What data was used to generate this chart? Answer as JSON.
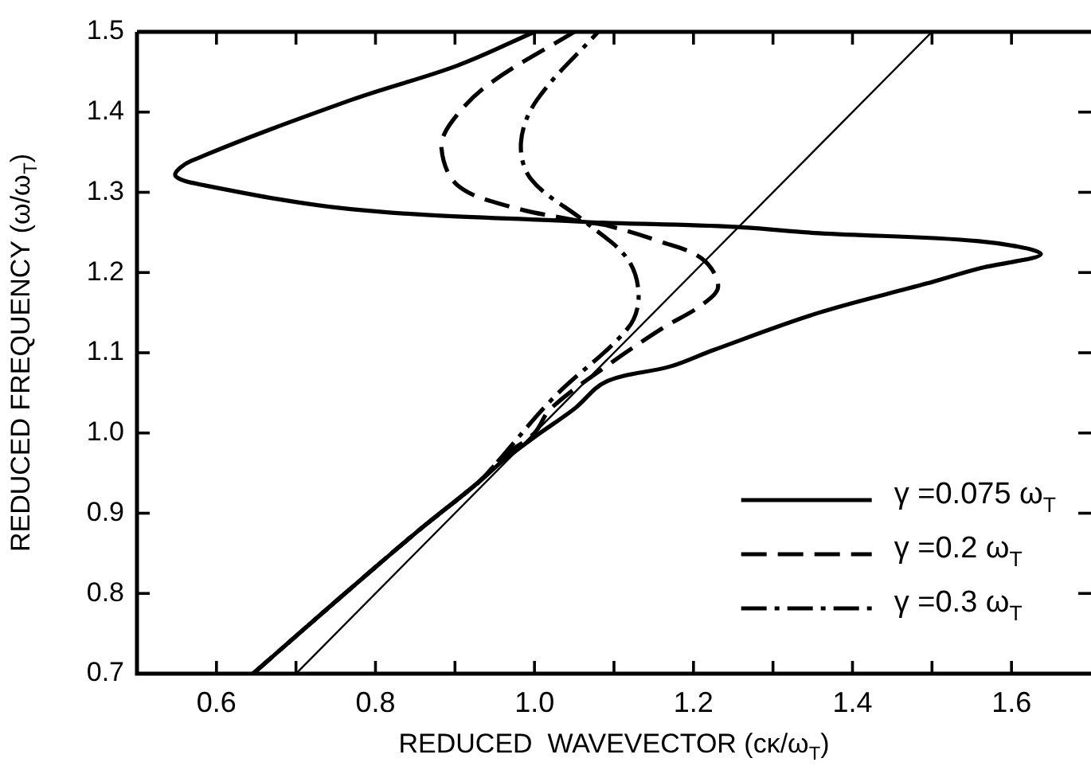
{
  "chart_data": {
    "type": "line",
    "xlabel": "REDUCED  WAVEVECTOR (cκ/ω$_{T}$)",
    "ylabel": "REDUCED FREQUENCY (ω/ω$_{T}$)",
    "xlim": [
      0.5,
      1.7
    ],
    "ylim": [
      0.7,
      1.5
    ],
    "xticks": [
      0.6,
      {
        "value": 0.7,
        "label": null
      },
      0.8,
      {
        "value": 0.9,
        "label": null
      },
      {
        "value": 1,
        "label": "1.0"
      },
      {
        "value": 1.1,
        "label": null
      },
      1.2,
      {
        "value": 1.3,
        "label": null
      },
      1.4,
      {
        "value": 1.5,
        "label": null
      },
      1.6
    ],
    "yticks": [
      0.7,
      0.8,
      0.9,
      {
        "value": 1,
        "label": "1.0"
      },
      1.1,
      1.2,
      1.3,
      1.4,
      1.5
    ],
    "grid": false,
    "legend": "bottom right",
    "marker": "none",
    "series": [
      {
        "name": "γ =0.075 ω$_{T}$",
        "color": "#000000",
        "line_style": "solid",
        "x": [
          0.646,
          0.75,
          0.85,
          0.93,
          0.96,
          1.0,
          1.05,
          1.09,
          1.171,
          1.224,
          1.358,
          1.492,
          1.559,
          1.637,
          1.559,
          1.358,
          1.251,
          1.09,
          1.064,
          0.769,
          0.568,
          0.548,
          0.568,
          0.769,
          0.903,
          1.0
        ],
        "values": [
          0.7,
          0.79,
          0.875,
          0.939,
          0.965,
          0.995,
          1.03,
          1.064,
          1.083,
          1.103,
          1.15,
          1.186,
          1.205,
          1.223,
          1.239,
          1.249,
          1.257,
          1.262,
          1.263,
          1.279,
          1.312,
          1.322,
          1.339,
          1.415,
          1.458,
          1.5
        ]
      },
      {
        "name": "γ =0.2 ω$_{T}$",
        "color": "#000000",
        "line_style": "dashed",
        "x": [
          0.646,
          0.75,
          0.85,
          0.93,
          0.96,
          1.0,
          1.02,
          1.09,
          1.16,
          1.211,
          1.231,
          1.211,
          1.157,
          1.09,
          1.064,
          0.97,
          0.903,
          0.883,
          0.896,
          0.943,
          1.05
        ],
        "values": [
          0.7,
          0.79,
          0.875,
          0.939,
          0.97,
          1.0,
          1.03,
          1.083,
          1.13,
          1.16,
          1.183,
          1.217,
          1.239,
          1.259,
          1.263,
          1.282,
          1.309,
          1.355,
          1.388,
          1.435,
          1.5
        ]
      },
      {
        "name": "γ =0.3 ω$_{T}$",
        "color": "#000000",
        "line_style": "dashdot",
        "x": [
          0.646,
          0.75,
          0.85,
          0.93,
          0.95,
          1.024,
          1.117,
          1.131,
          1.117,
          1.064,
          0.996,
          0.983,
          1.003,
          1.08
        ],
        "values": [
          0.7,
          0.79,
          0.875,
          0.939,
          0.96,
          1.044,
          1.13,
          1.17,
          1.217,
          1.263,
          1.316,
          1.362,
          1.415,
          1.5
        ]
      },
      {
        "color": "#000000",
        "line_style": "solid",
        "x": [
          0.7,
          1.5
        ],
        "values": [
          0.7,
          1.5
        ]
      }
    ]
  }
}
